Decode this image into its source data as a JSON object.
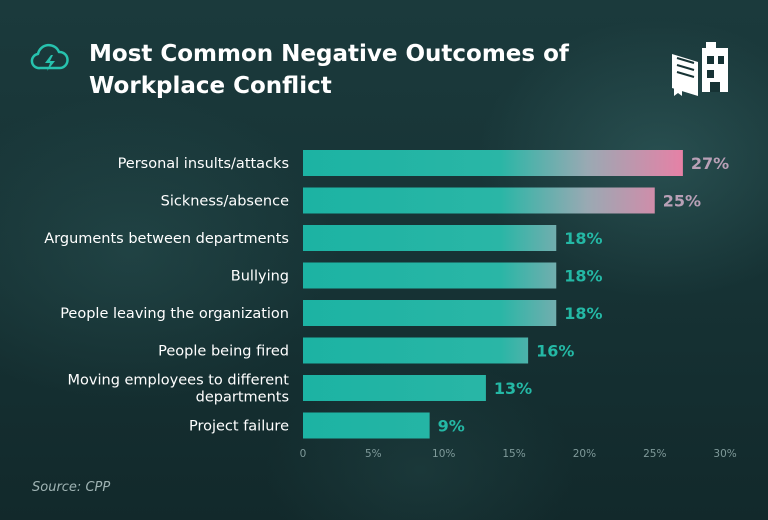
{
  "title_line1": "Most Common Negative Outcomes of",
  "title_line2": "Workplace Conflict",
  "source": "Source: CPP",
  "icons": {
    "title_icon": "cloud-lightning-icon",
    "logo": "book-building-logo"
  },
  "colors": {
    "background": "#163234",
    "bar_start": "#1cb3a3",
    "bar_end": "#e681a6",
    "value_low": "#24b8a5",
    "value_high": "#b8a0b6",
    "label": "#ffffff",
    "tick": "#7f9a9a"
  },
  "chart_data": {
    "type": "bar",
    "orientation": "horizontal",
    "title": "Most Common Negative Outcomes of Workplace Conflict",
    "categories": [
      "Personal insults/attacks",
      "Sickness/absence",
      "Arguments between departments",
      "Bullying",
      "People leaving the organization",
      "People being fired",
      "Moving employees to different departments",
      "Project failure"
    ],
    "values": [
      27,
      25,
      18,
      18,
      18,
      16,
      13,
      9
    ],
    "value_labels": [
      "27%",
      "25%",
      "18%",
      "18%",
      "18%",
      "16%",
      "13%",
      "9%"
    ],
    "xlim": [
      0,
      30
    ],
    "xticks": [
      "0",
      "5%",
      "10%",
      "15%",
      "20%",
      "25%",
      "30%"
    ],
    "xlabel": "",
    "ylabel": "",
    "grid": false,
    "legend": "none"
  }
}
